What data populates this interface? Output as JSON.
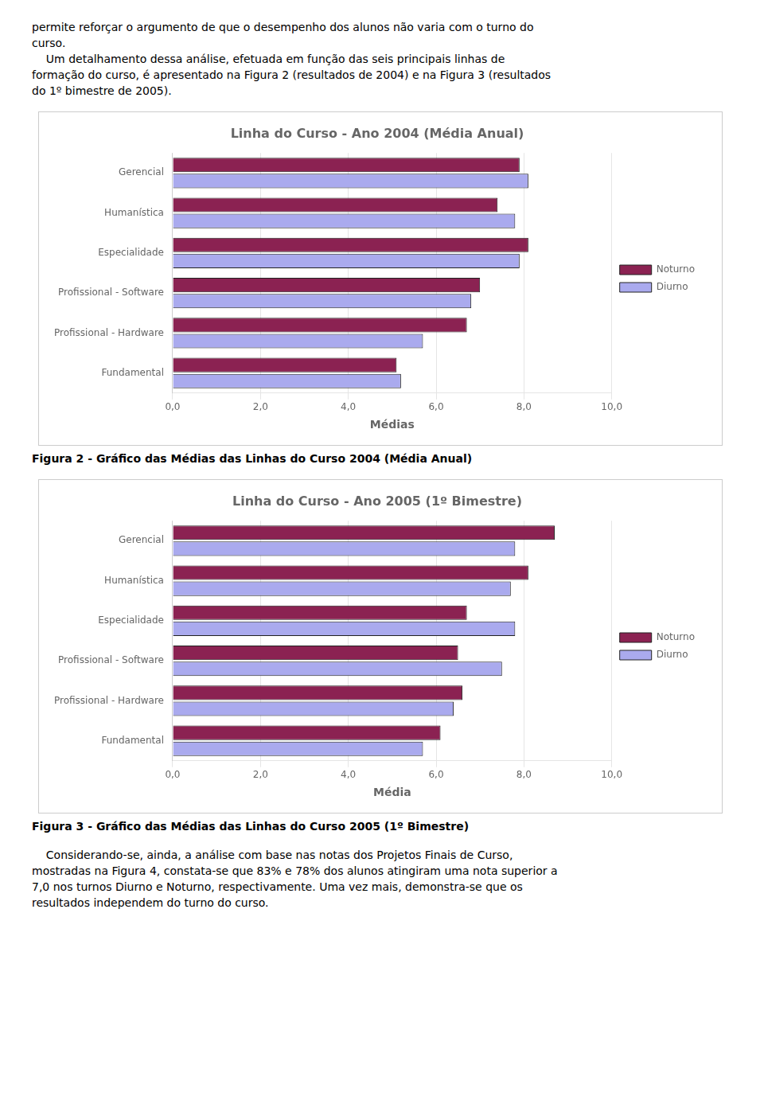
{
  "chart_data": [
    {
      "type": "bar",
      "orientation": "horizontal",
      "title": "Linha do Curso - Ano 2004 (Média Anual)",
      "categories": [
        "Gerencial",
        "Humanística",
        "Especialidade",
        "Profissional - Software",
        "Profissional - Hardware",
        "Fundamental"
      ],
      "series": [
        {
          "name": "Noturno",
          "color": "#8B2252",
          "values": [
            7.9,
            7.4,
            8.1,
            7.0,
            6.7,
            5.1
          ]
        },
        {
          "name": "Diurno",
          "color": "#AAAAEE",
          "values": [
            8.1,
            7.8,
            7.9,
            6.8,
            5.7,
            5.2
          ]
        }
      ],
      "xlabel": "Médias",
      "xlim": [
        0,
        10
      ],
      "xticks": [
        {
          "value": 0,
          "label": "0,0"
        },
        {
          "value": 2,
          "label": "2,0"
        },
        {
          "value": 4,
          "label": "4,0"
        },
        {
          "value": 6,
          "label": "6,0"
        },
        {
          "value": 8,
          "label": "8,0"
        },
        {
          "value": 10,
          "label": "10,0"
        }
      ],
      "grid": true,
      "legend": "right",
      "caption": "Figura 2 - Gráfico das Médias das Linhas do Curso 2004 (Média Anual)"
    },
    {
      "type": "bar",
      "orientation": "horizontal",
      "title": "Linha do Curso - Ano 2005 (1º Bimestre)",
      "categories": [
        "Gerencial",
        "Humanística",
        "Especialidade",
        "Profissional - Software",
        "Profissional - Hardware",
        "Fundamental"
      ],
      "series": [
        {
          "name": "Noturno",
          "color": "#8B2252",
          "values": [
            8.7,
            8.1,
            6.7,
            6.5,
            6.6,
            6.1
          ]
        },
        {
          "name": "Diurno",
          "color": "#AAAAEE",
          "values": [
            7.8,
            7.7,
            7.8,
            7.5,
            6.4,
            5.7
          ]
        }
      ],
      "xlabel": "Média",
      "xlim": [
        0,
        10
      ],
      "xticks": [
        {
          "value": 0,
          "label": "0,0"
        },
        {
          "value": 2,
          "label": "2,0"
        },
        {
          "value": 4,
          "label": "4,0"
        },
        {
          "value": 6,
          "label": "6,0"
        },
        {
          "value": 8,
          "label": "8,0"
        },
        {
          "value": 10,
          "label": "10,0"
        }
      ],
      "grid": true,
      "legend": "right",
      "caption": "Figura 3 - Gráfico das Médias das Linhas do Curso 2005 (1º Bimestre)"
    }
  ],
  "page_text_top": [
    "permite reforçar o argumento de que o desempenho dos alunos não varia com o turno do",
    "curso.",
    "    Um detalhamento dessa análise, efetuada em função das seis principais linhas de",
    "formação do curso, é apresentado na Figura 2 (resultados de 2004) e na Figura 3 (resultados",
    "do 1º bimestre de 2005)."
  ],
  "page_text_bottom": [
    "    Considerando-se, ainda, a análise com base nas notas dos Projetos Finais de Curso,",
    "mostradas na Figura 4, constata-se que 83% e 78% dos alunos atingiram uma nota superior a",
    "7,0 nos turnos Diurno e Noturno, respectivamente. Uma vez mais, demonstra-se que os",
    "resultados independem do turno do curso."
  ]
}
